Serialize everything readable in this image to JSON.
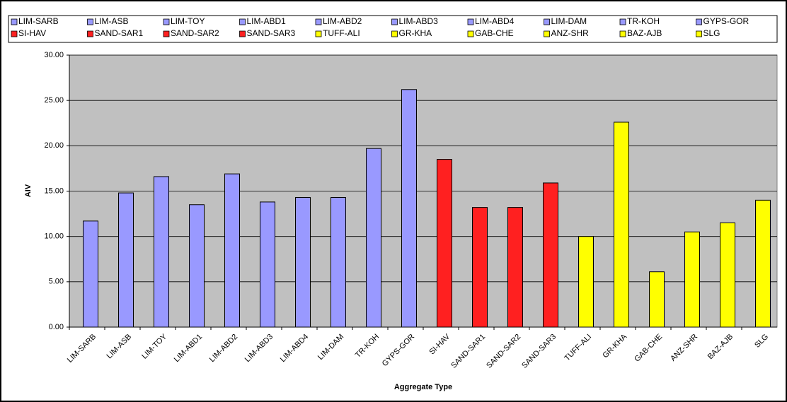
{
  "chart_data": {
    "type": "bar",
    "x_label": "Aggregate Type",
    "y_label": "AIV",
    "categories": [
      "LIM-SARB",
      "LIM-ASB",
      "LIM-TOY",
      "LIM-ABD1",
      "LIM-ABD2",
      "LIM-ABD3",
      "LIM-ABD4",
      "LIM-DAM",
      "TR-KOH",
      "GYPS-GOR",
      "SI-HAV",
      "SAND-SAR1",
      "SAND-SAR2",
      "SAND-SAR3",
      "TUFF-ALI",
      "GR-KHA",
      "GAB-CHE",
      "ANZ-SHR",
      "BAZ-AJB",
      "SLG"
    ],
    "values": [
      11.7,
      14.8,
      16.6,
      13.5,
      16.9,
      13.8,
      14.3,
      14.3,
      19.7,
      26.2,
      18.5,
      13.2,
      13.2,
      15.9,
      10.0,
      22.6,
      6.1,
      10.5,
      11.5,
      14.0
    ],
    "colors": [
      "#9999ff",
      "#9999ff",
      "#9999ff",
      "#9999ff",
      "#9999ff",
      "#9999ff",
      "#9999ff",
      "#9999ff",
      "#9999ff",
      "#9999ff",
      "#ff2020",
      "#ff2020",
      "#ff2020",
      "#ff2020",
      "#ffff00",
      "#ffff00",
      "#ffff00",
      "#ffff00",
      "#ffff00",
      "#ffff00"
    ],
    "ylim": [
      0,
      30
    ],
    "yticks": [
      {
        "value": 0,
        "label": "0.00"
      },
      {
        "value": 5,
        "label": "5.00"
      },
      {
        "value": 10,
        "label": "10.00"
      },
      {
        "value": 15,
        "label": "15.00"
      },
      {
        "value": 20,
        "label": "20.00"
      },
      {
        "value": 25,
        "label": "25.00"
      },
      {
        "value": 30,
        "label": "30.00"
      }
    ],
    "grid": true,
    "legend": "top"
  }
}
